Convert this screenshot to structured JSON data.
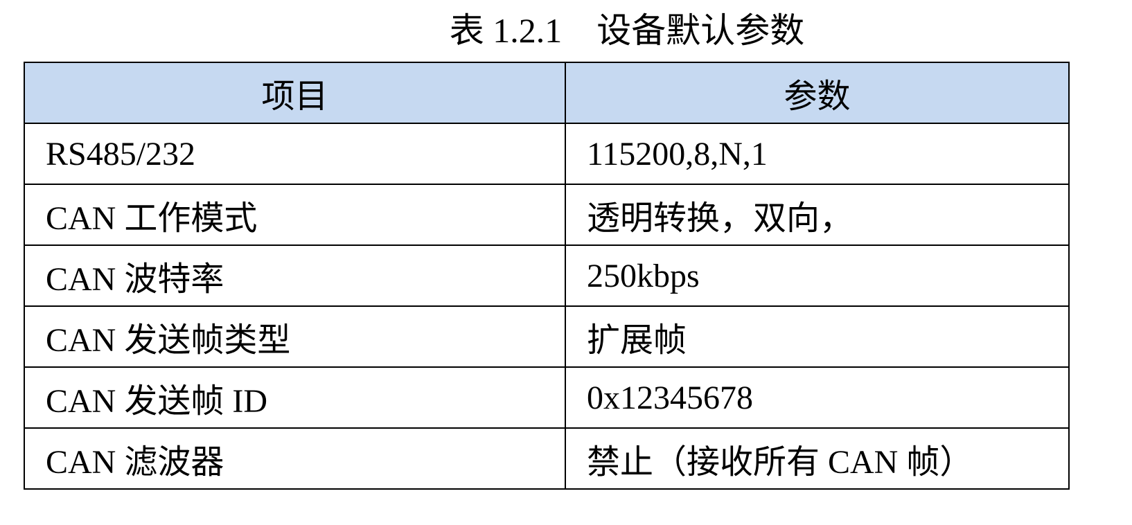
{
  "title": "表 1.2.1    设备默认参数",
  "table": {
    "headers": [
      "项目",
      "参数"
    ],
    "rows": [
      [
        "RS485/232",
        "115200,8,N,1"
      ],
      [
        "CAN 工作模式",
        "透明转换，双向，"
      ],
      [
        "CAN 波特率",
        "250kbps"
      ],
      [
        "CAN 发送帧类型",
        "扩展帧"
      ],
      [
        "CAN 发送帧 ID",
        "0x12345678"
      ],
      [
        "CAN 滤波器",
        "禁止（接收所有 CAN 帧）"
      ]
    ]
  },
  "colors": {
    "header_bg": "#c6d9f1",
    "border": "#000000"
  }
}
